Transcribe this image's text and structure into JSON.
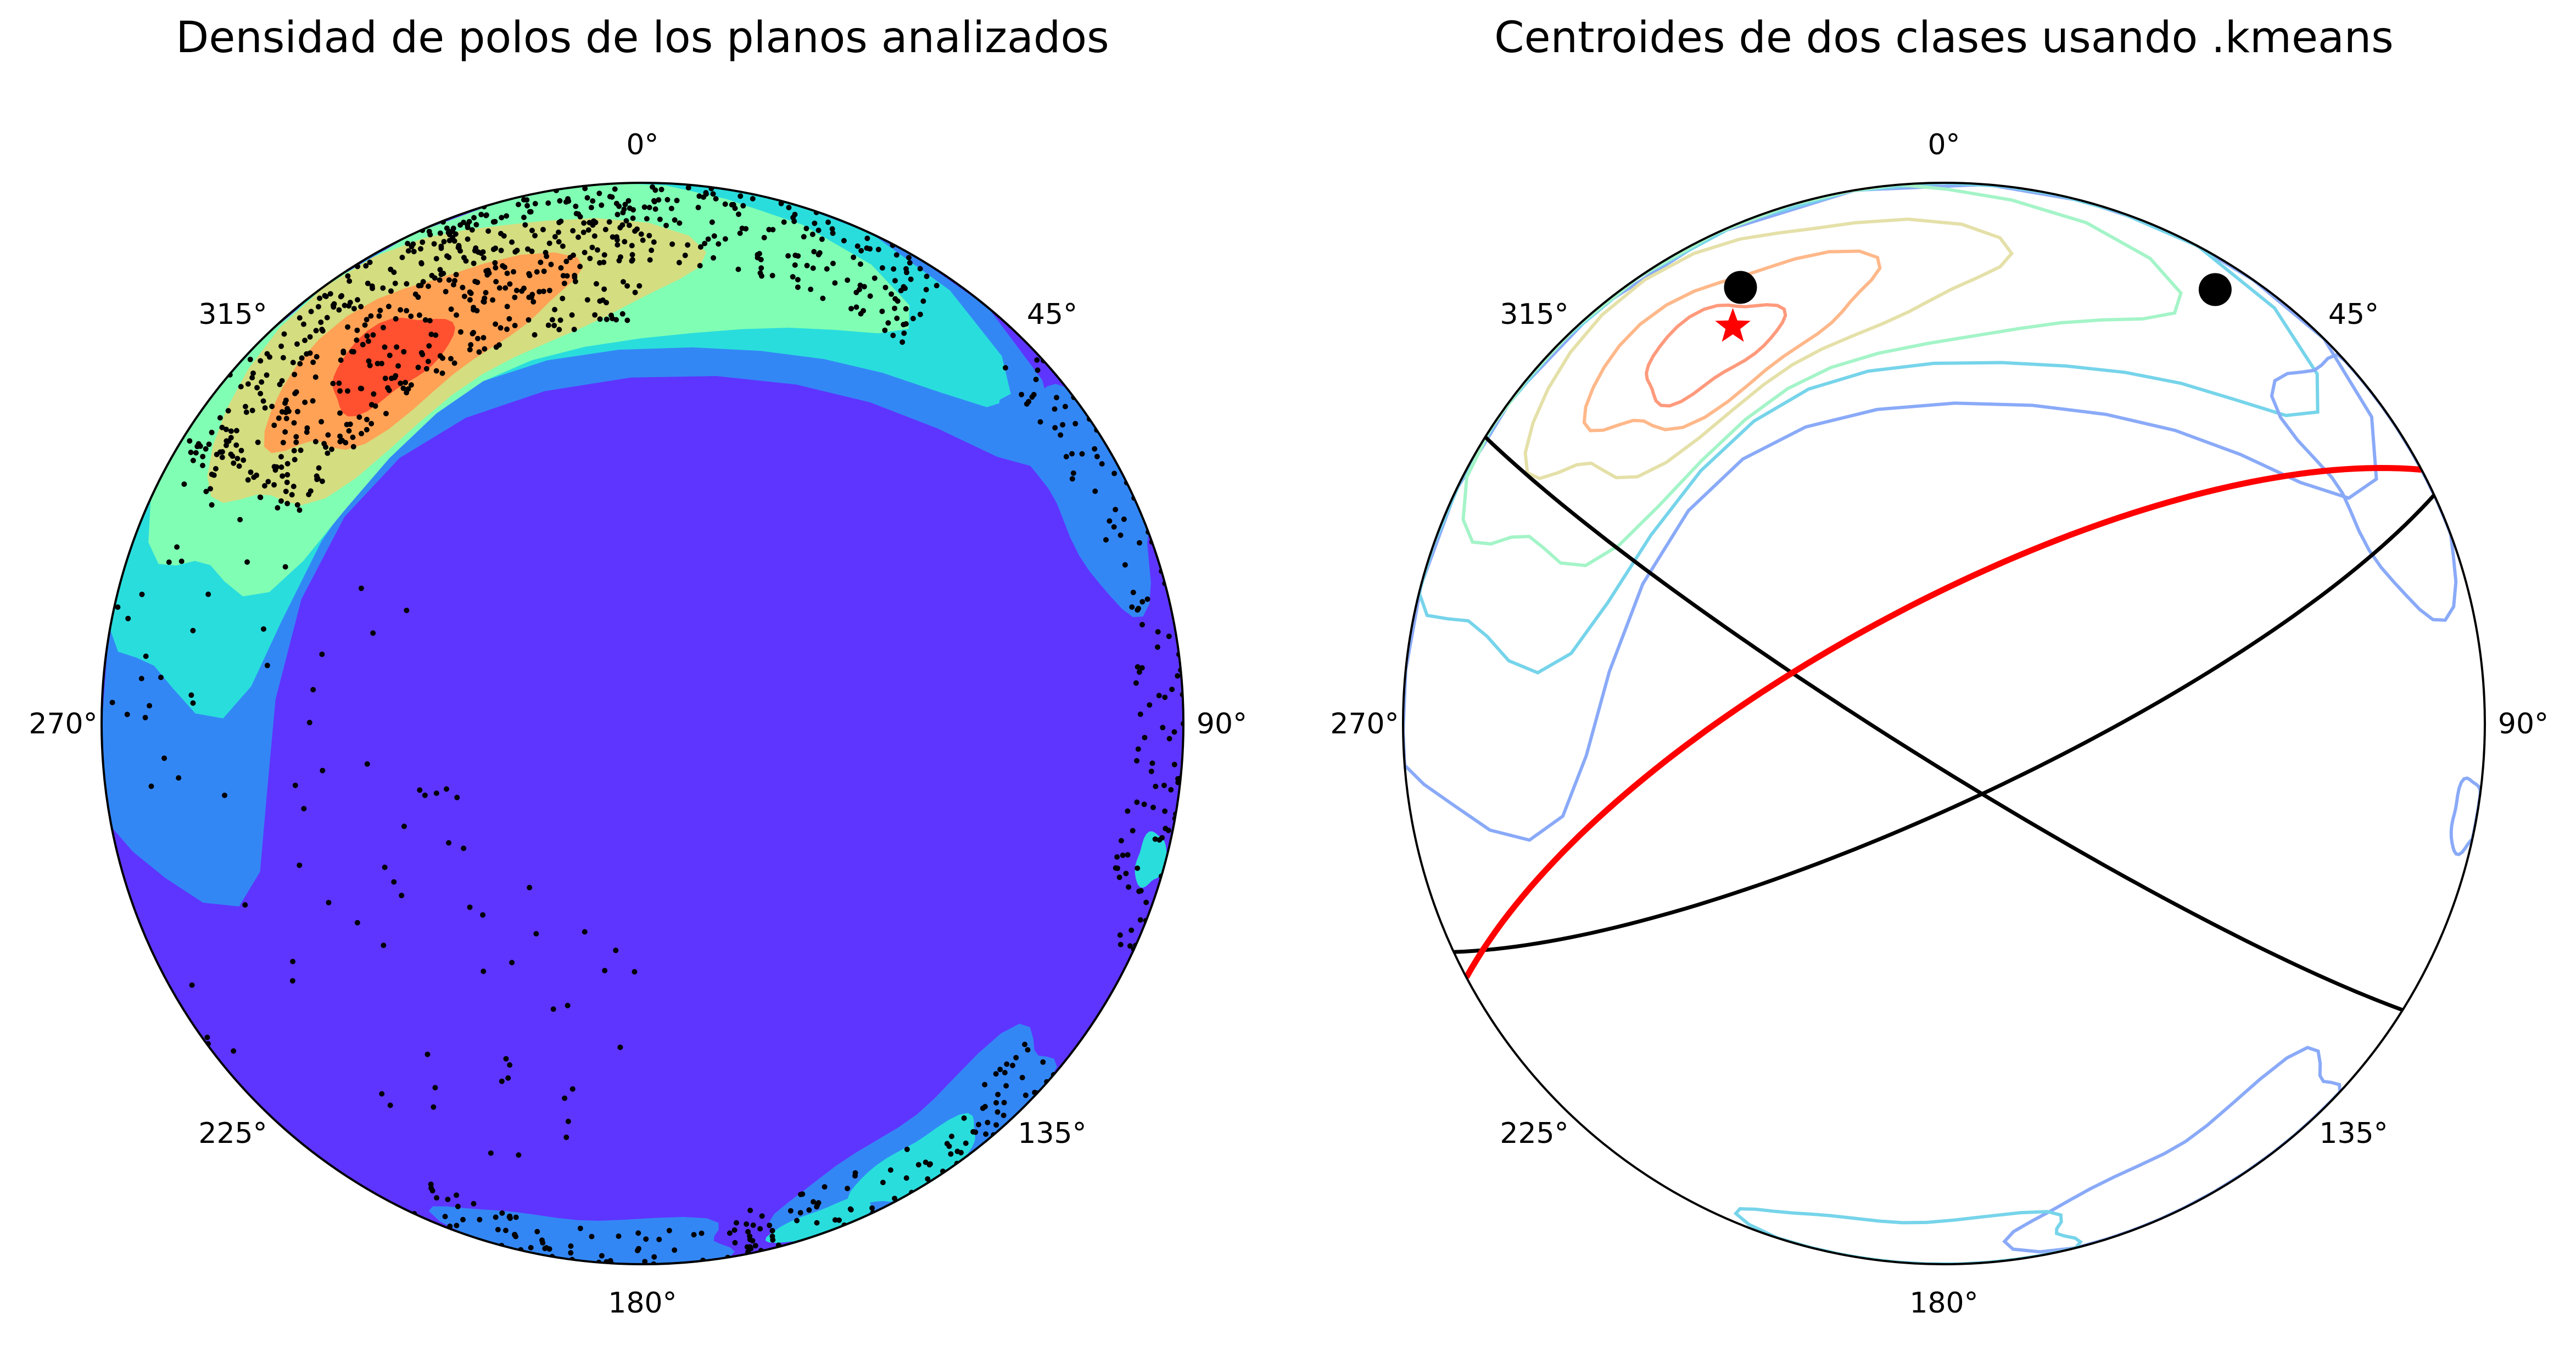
{
  "colors": {
    "background_density": "#5e35fe",
    "point": "#000000",
    "great_circle_black": "#000000",
    "great_circle_red": "#ff0000",
    "star": "#ff0000",
    "centroid": "#000000",
    "density_levels": [
      "#5e35fe",
      "#3387f5",
      "#2adddd",
      "#80ffb4",
      "#d4dd80",
      "#ffa256",
      "#ff5030"
    ],
    "contour_levels": [
      "#8aaaf8",
      "#76d4ea",
      "#a4f4c8",
      "#e4e0a8",
      "#ffb88a",
      "#ff9a7c"
    ]
  },
  "chart_data": [
    {
      "type": "stereonet-density",
      "title": "Densidad de polos de los planos analizados",
      "azimuth_ticks": [
        "0°",
        "45°",
        "90°",
        "135°",
        "180°",
        "225°",
        "270°",
        "315°"
      ],
      "density_max_near": {
        "trend_deg": 325,
        "plunge_deg": 18
      },
      "poles_description": "scattered black dots concentrated in the 300°–30° sector near the primitive, with secondary clusters at 70°–150° and 165°–200°"
    },
    {
      "type": "stereonet-kmeans",
      "title": "Centroides de dos clases usando .kmeans",
      "azimuth_ticks": [
        "0°",
        "45°",
        "90°",
        "135°",
        "180°",
        "225°",
        "270°",
        "315°"
      ],
      "centroids": [
        {
          "trend_deg": 335,
          "plunge_deg": 12
        },
        {
          "trend_deg": 32,
          "plunge_deg": 6
        }
      ],
      "mean_pole_star": {
        "trend_deg": 332,
        "plunge_deg": 18
      },
      "great_circles": [
        {
          "strike_deg": 65,
          "dip_deg": 78,
          "color": "black"
        },
        {
          "strike_deg": 122,
          "dip_deg": 84,
          "color": "black"
        },
        {
          "strike_deg": 242,
          "dip_deg": 72,
          "color": "red"
        }
      ]
    }
  ]
}
